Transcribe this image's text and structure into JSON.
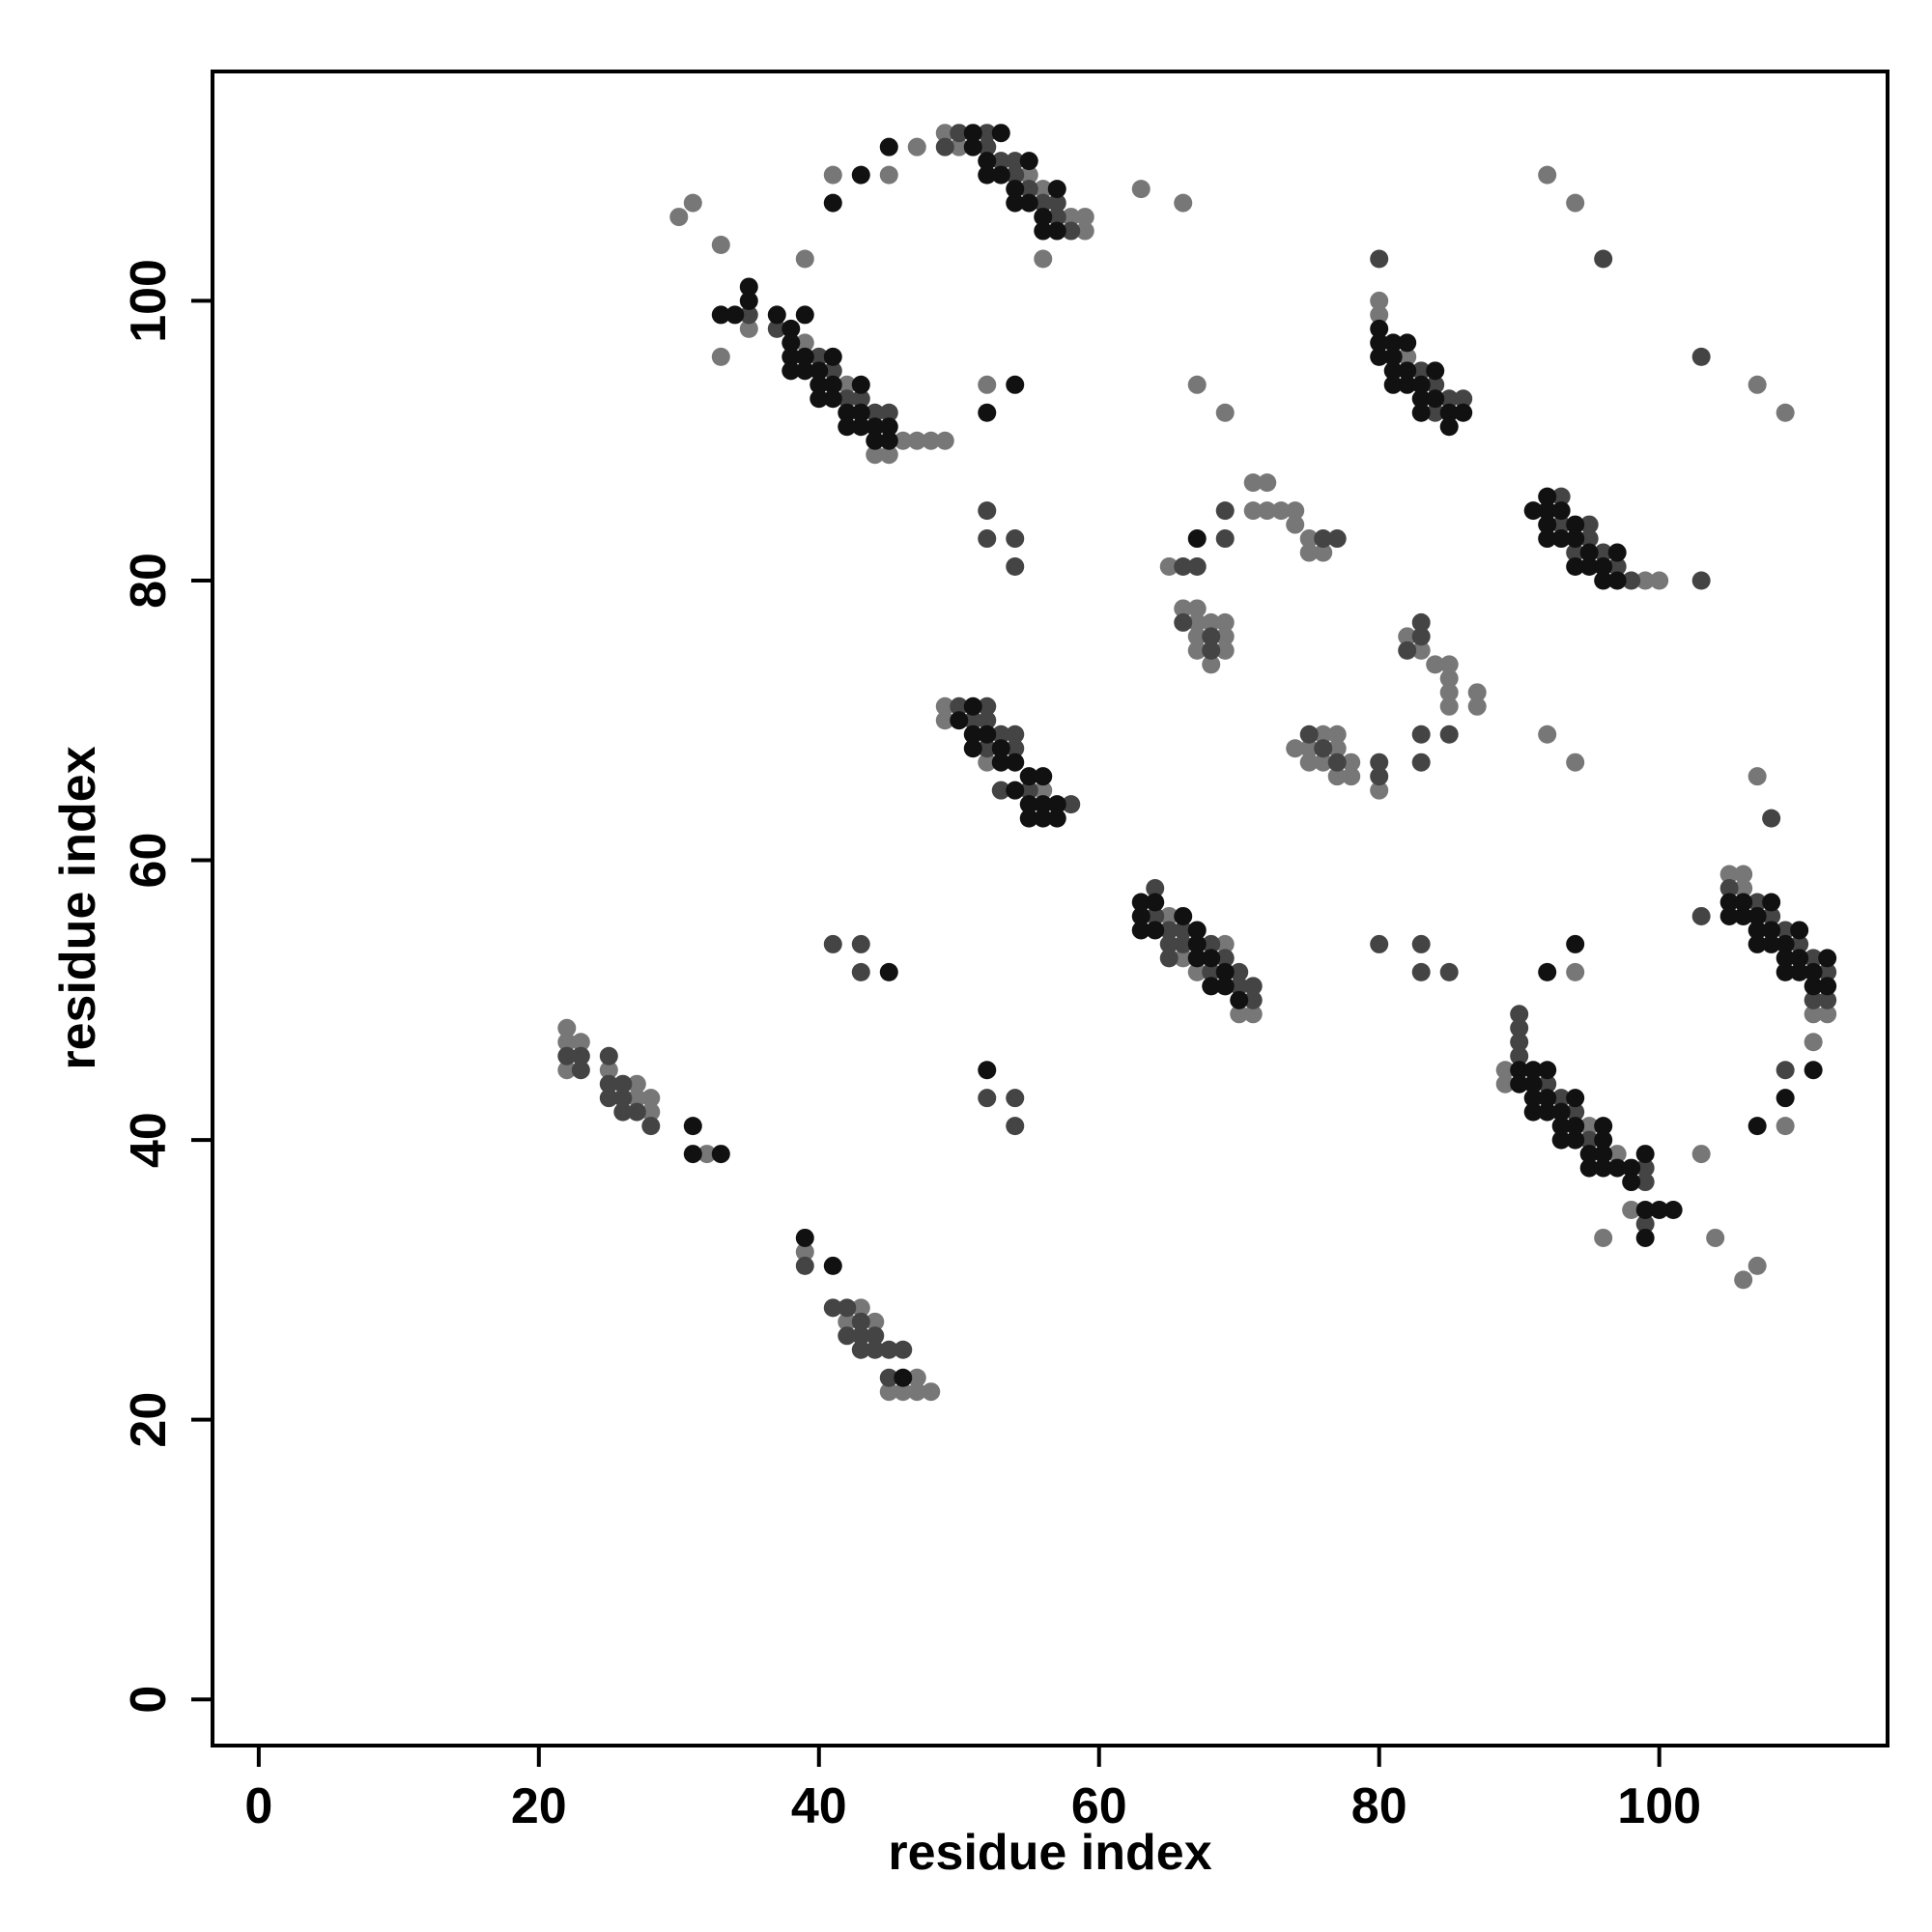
{
  "chart_data": {
    "type": "scatter",
    "xlabel": "residue index",
    "ylabel": "residue index",
    "xlim": [
      -3.3,
      116.3
    ],
    "ylim": [
      -3.3,
      116.4
    ],
    "xticks": [
      0,
      20,
      40,
      60,
      80,
      100
    ],
    "yticks": [
      0,
      20,
      40,
      60,
      80,
      100
    ],
    "series": [
      {
        "color": "#777777",
        "x": [
          49,
          50,
          55,
          56,
          58,
          59,
          59,
          56,
          47,
          41,
          45,
          30,
          31,
          33,
          39,
          35,
          39,
          42,
          46,
          47,
          48,
          49,
          44,
          45,
          33,
          52,
          63,
          66,
          67,
          69,
          80,
          80,
          82,
          92,
          94,
          107,
          109,
          99,
          100,
          71,
          72,
          71,
          72,
          73,
          74,
          74,
          75,
          75,
          76,
          65,
          66,
          67,
          67,
          68,
          69,
          67,
          69,
          67,
          69,
          68,
          82,
          83,
          84,
          85,
          85,
          85,
          87,
          85,
          87,
          80,
          74,
          76,
          77,
          75,
          77,
          75,
          76,
          78,
          77,
          78,
          92,
          94,
          107,
          49,
          49,
          52,
          56,
          65,
          69,
          66,
          67,
          70,
          71,
          89,
          89,
          95,
          97,
          98,
          96,
          94,
          105,
          106,
          106,
          111,
          112,
          111,
          109,
          103,
          104,
          106,
          107,
          22,
          22,
          23,
          22,
          25,
          27,
          27,
          28,
          28,
          32,
          39,
          43,
          42,
          44,
          47,
          45,
          46,
          47,
          48
        ],
        "values": [
          112,
          111,
          109,
          108,
          106,
          106,
          105,
          103,
          111,
          109,
          109,
          106,
          107,
          104,
          103,
          98,
          97,
          94,
          90,
          90,
          90,
          90,
          89,
          89,
          96,
          94,
          108,
          107,
          94,
          92,
          100,
          99,
          96,
          109,
          107,
          94,
          92,
          80,
          80,
          87,
          87,
          85,
          85,
          85,
          85,
          84,
          83,
          82,
          82,
          81,
          78,
          78,
          77,
          77,
          77,
          76,
          76,
          75,
          75,
          74,
          76,
          75,
          74,
          74,
          73,
          72,
          72,
          71,
          71,
          65,
          68,
          69,
          69,
          68,
          68,
          67,
          67,
          67,
          66,
          66,
          69,
          67,
          66,
          71,
          70,
          67,
          65,
          56,
          54,
          53,
          52,
          49,
          49,
          45,
          44,
          41,
          39,
          35,
          33,
          52,
          59,
          59,
          58,
          49,
          49,
          47,
          41,
          39,
          33,
          30,
          31,
          48,
          47,
          47,
          45,
          45,
          44,
          43,
          43,
          42,
          39,
          32,
          28,
          27,
          27,
          23,
          22,
          22,
          22,
          22
        ]
      },
      {
        "color": "#444444",
        "x": [
          50,
          52,
          49,
          52,
          53,
          54,
          54,
          55,
          56,
          57,
          57,
          58,
          35,
          37,
          40,
          41,
          42,
          43,
          44,
          45,
          52,
          52,
          54,
          54,
          80,
          83,
          84,
          85,
          86,
          84,
          96,
          103,
          93,
          95,
          93,
          95,
          94,
          96,
          97,
          98,
          103,
          69,
          76,
          77,
          69,
          66,
          67,
          66,
          68,
          68,
          83,
          83,
          82,
          85,
          83,
          83,
          80,
          80,
          75,
          76,
          77,
          108,
          50,
          52,
          51,
          52,
          53,
          54,
          52,
          54,
          53,
          55,
          58,
          64,
          64,
          65,
          66,
          65,
          66,
          68,
          65,
          69,
          68,
          70,
          70,
          71,
          71,
          41,
          43,
          43,
          80,
          83,
          83,
          85,
          52,
          54,
          54,
          90,
          90,
          90,
          90,
          92,
          93,
          94,
          95,
          99,
          99,
          99,
          105,
          107,
          108,
          103,
          109,
          110,
          111,
          112,
          111,
          112,
          109,
          22,
          23,
          23,
          25,
          25,
          26,
          25,
          26,
          26,
          27,
          28,
          39,
          41,
          42,
          43,
          42,
          43,
          44,
          43,
          44,
          45,
          46,
          45
        ],
        "values": [
          112,
          112,
          111,
          111,
          110,
          110,
          109,
          108,
          107,
          107,
          106,
          105,
          99,
          98,
          96,
          95,
          93,
          93,
          92,
          92,
          85,
          83,
          83,
          81,
          103,
          95,
          94,
          93,
          93,
          92,
          103,
          96,
          86,
          84,
          84,
          83,
          82,
          82,
          81,
          80,
          80,
          85,
          83,
          83,
          83,
          81,
          81,
          77,
          76,
          75,
          77,
          76,
          75,
          69,
          69,
          67,
          67,
          66,
          69,
          68,
          67,
          63,
          71,
          71,
          70,
          70,
          69,
          69,
          68,
          68,
          65,
          65,
          64,
          58,
          56,
          55,
          55,
          54,
          54,
          54,
          53,
          53,
          52,
          52,
          51,
          51,
          50,
          54,
          54,
          52,
          54,
          54,
          52,
          52,
          43,
          43,
          41,
          49,
          48,
          47,
          46,
          44,
          43,
          42,
          40,
          38,
          37,
          34,
          58,
          57,
          56,
          56,
          55,
          54,
          53,
          52,
          50,
          50,
          45,
          46,
          46,
          45,
          46,
          44,
          44,
          43,
          43,
          42,
          42,
          41,
          31,
          28,
          28,
          27,
          26,
          26,
          26,
          25,
          25,
          25,
          25,
          23
        ]
      },
      {
        "color": "#111111",
        "x": [
          53,
          51,
          51,
          52,
          55,
          52,
          53,
          54,
          57,
          54,
          55,
          56,
          56,
          57,
          45,
          43,
          41,
          35,
          35,
          33,
          34,
          37,
          39,
          38,
          38,
          38,
          39,
          41,
          38,
          39,
          40,
          40,
          41,
          43,
          40,
          41,
          42,
          43,
          42,
          43,
          44,
          45,
          44,
          45,
          54,
          52,
          67,
          80,
          80,
          81,
          82,
          80,
          81,
          81,
          82,
          84,
          81,
          82,
          83,
          83,
          84,
          83,
          85,
          86,
          85,
          91,
          92,
          92,
          93,
          94,
          92,
          94,
          92,
          93,
          95,
          97,
          94,
          95,
          96,
          96,
          97,
          51,
          50,
          51,
          52,
          51,
          53,
          53,
          54,
          55,
          56,
          54,
          55,
          56,
          57,
          55,
          56,
          57,
          63,
          64,
          63,
          66,
          63,
          64,
          67,
          67,
          67,
          68,
          69,
          68,
          69,
          70,
          45,
          52,
          90,
          91,
          92,
          90,
          91,
          91,
          92,
          94,
          91,
          92,
          93,
          93,
          94,
          96,
          93,
          94,
          96,
          95,
          96,
          99,
          95,
          96,
          97,
          98,
          98,
          99,
          100,
          101,
          99,
          92,
          94,
          105,
          106,
          108,
          105,
          106,
          107,
          107,
          108,
          110,
          107,
          108,
          109,
          109,
          110,
          112,
          109,
          110,
          111,
          111,
          112,
          111,
          109,
          107,
          31,
          31,
          33,
          39,
          41,
          46
        ],
        "values": [
          112,
          112,
          111,
          110,
          110,
          109,
          109,
          108,
          108,
          107,
          107,
          106,
          105,
          105,
          111,
          109,
          107,
          101,
          100,
          99,
          99,
          99,
          99,
          98,
          97,
          96,
          96,
          96,
          95,
          95,
          95,
          94,
          94,
          94,
          93,
          93,
          92,
          92,
          91,
          91,
          91,
          91,
          90,
          90,
          94,
          92,
          83,
          98,
          97,
          97,
          97,
          96,
          96,
          95,
          95,
          95,
          94,
          94,
          94,
          93,
          93,
          92,
          92,
          92,
          91,
          85,
          86,
          85,
          85,
          84,
          84,
          83,
          83,
          83,
          82,
          82,
          81,
          81,
          81,
          80,
          80,
          71,
          70,
          69,
          69,
          68,
          68,
          67,
          67,
          66,
          66,
          65,
          64,
          64,
          64,
          63,
          63,
          63,
          57,
          57,
          56,
          56,
          55,
          55,
          55,
          54,
          53,
          53,
          52,
          51,
          51,
          50,
          52,
          45,
          45,
          45,
          45,
          44,
          44,
          43,
          43,
          43,
          42,
          42,
          42,
          41,
          41,
          41,
          40,
          40,
          40,
          39,
          39,
          39,
          38,
          38,
          38,
          38,
          37,
          35,
          35,
          35,
          33,
          52,
          54,
          57,
          57,
          57,
          56,
          56,
          56,
          55,
          55,
          55,
          54,
          54,
          54,
          53,
          53,
          53,
          52,
          52,
          52,
          51,
          51,
          45,
          43,
          41,
          41,
          39,
          39,
          33,
          31,
          23
        ]
      }
    ]
  }
}
